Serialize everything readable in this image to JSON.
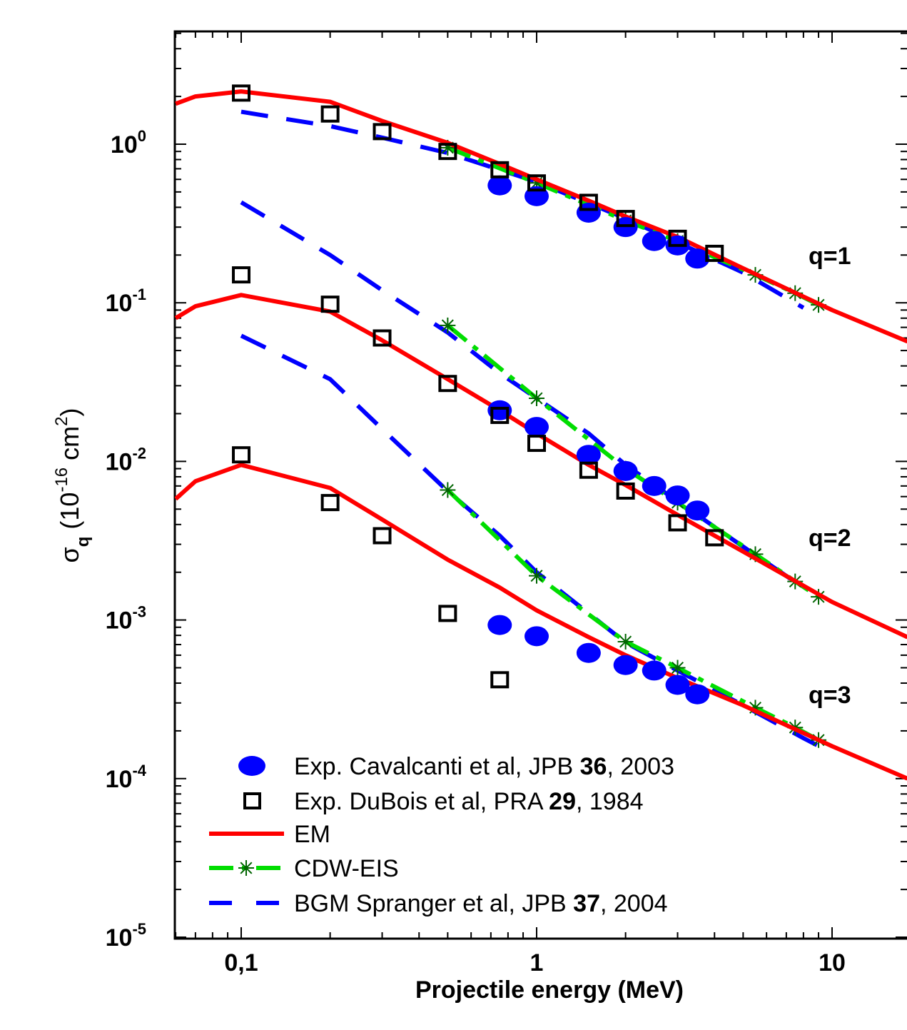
{
  "chart_data": {
    "type": "scatter",
    "x_scale": "log",
    "y_scale": "log",
    "xlim": [
      0.06,
      18
    ],
    "ylim": [
      1e-05,
      10
    ],
    "x_ticks": [
      {
        "value": 0.1,
        "label": "0,1"
      },
      {
        "value": 1,
        "label": "1"
      },
      {
        "value": 10,
        "label": "10"
      }
    ],
    "y_ticks": [
      {
        "value": 1,
        "base": "10",
        "exp": "0"
      },
      {
        "value": 0.1,
        "base": "10",
        "exp": "-1"
      },
      {
        "value": 0.01,
        "base": "10",
        "exp": "-2"
      },
      {
        "value": 0.001,
        "base": "10",
        "exp": "-3"
      },
      {
        "value": 0.0001,
        "base": "10",
        "exp": "-4"
      },
      {
        "value": 1e-05,
        "base": "10",
        "exp": "-5"
      }
    ],
    "xlabel": "Projectile energy (MeV)",
    "ylabel": {
      "sigma": "σ",
      "sub": "q",
      "open": " (10",
      "exp": "-16",
      "unit": " cm",
      "unit_exp": "2",
      "close": ")"
    },
    "legend_placement": "bottom-left",
    "annotations": [
      {
        "text": "q=1",
        "x": 12.5,
        "y": 0.15
      },
      {
        "text": "q=2",
        "x": 12.5,
        "y": 0.0026
      },
      {
        "text": "q=3",
        "x": 12.5,
        "y": 0.00027
      }
    ],
    "series": [
      {
        "key": "cav",
        "legend": {
          "pre": "Exp. Cavalcanti et al, JPB ",
          "bold": "36",
          "post": ", 2003"
        },
        "marker": "filled-ellipse",
        "color": "#0000ff",
        "groups": [
          {
            "q": 1,
            "points": [
              [
                0.75,
                0.55
              ],
              [
                1.0,
                0.47
              ],
              [
                1.5,
                0.37
              ],
              [
                2.0,
                0.3
              ],
              [
                2.5,
                0.245
              ],
              [
                3.0,
                0.23
              ],
              [
                3.5,
                0.19
              ]
            ]
          },
          {
            "q": 2,
            "points": [
              [
                0.75,
                0.021
              ],
              [
                1.0,
                0.0165
              ],
              [
                1.5,
                0.011
              ],
              [
                2.0,
                0.0087
              ],
              [
                2.5,
                0.007
              ],
              [
                3.0,
                0.0061
              ],
              [
                3.5,
                0.0049
              ]
            ]
          },
          {
            "q": 3,
            "points": [
              [
                0.75,
                0.00093
              ],
              [
                1.0,
                0.00079
              ],
              [
                1.5,
                0.00062
              ],
              [
                2.0,
                0.00052
              ],
              [
                2.5,
                0.00048
              ],
              [
                3.0,
                0.00039
              ],
              [
                3.5,
                0.00034
              ]
            ]
          }
        ]
      },
      {
        "key": "dubois",
        "legend": {
          "pre": "Exp. DuBois et al, PRA ",
          "bold": "29",
          "post": ", 1984"
        },
        "marker": "open-square",
        "color": "#000000",
        "groups": [
          {
            "q": 1,
            "points": [
              [
                0.1,
                2.1
              ],
              [
                0.2,
                1.55
              ],
              [
                0.3,
                1.2
              ],
              [
                0.5,
                0.9
              ],
              [
                0.75,
                0.69
              ],
              [
                1.0,
                0.57
              ],
              [
                1.5,
                0.43
              ],
              [
                2.0,
                0.34
              ],
              [
                3.0,
                0.255
              ],
              [
                4.0,
                0.205
              ]
            ]
          },
          {
            "q": 2,
            "points": [
              [
                0.1,
                0.15
              ],
              [
                0.2,
                0.098
              ],
              [
                0.3,
                0.06
              ],
              [
                0.5,
                0.031
              ],
              [
                0.75,
                0.0195
              ],
              [
                1.0,
                0.013
              ],
              [
                1.5,
                0.0088
              ],
              [
                2.0,
                0.0065
              ],
              [
                3.0,
                0.0041
              ],
              [
                4.0,
                0.0033
              ]
            ]
          },
          {
            "q": 3,
            "points": [
              [
                0.1,
                0.011
              ],
              [
                0.2,
                0.0055
              ],
              [
                0.3,
                0.0034
              ],
              [
                0.5,
                0.0011
              ],
              [
                0.75,
                0.00042
              ]
            ]
          }
        ]
      },
      {
        "key": "em",
        "legend": {
          "pre": " EM",
          "bold": "",
          "post": ""
        },
        "marker": "solid-line",
        "color": "#ff0000",
        "groups": [
          {
            "q": 1,
            "points": [
              [
                0.06,
                1.8
              ],
              [
                0.07,
                2.0
              ],
              [
                0.1,
                2.15
              ],
              [
                0.2,
                1.85
              ],
              [
                0.3,
                1.4
              ],
              [
                0.5,
                1.02
              ],
              [
                0.75,
                0.75
              ],
              [
                1.0,
                0.6
              ],
              [
                1.5,
                0.44
              ],
              [
                2.0,
                0.35
              ],
              [
                3.0,
                0.26
              ],
              [
                5.0,
                0.165
              ],
              [
                10.0,
                0.09
              ],
              [
                18.0,
                0.057
              ]
            ]
          },
          {
            "q": 2,
            "points": [
              [
                0.06,
                0.08
              ],
              [
                0.07,
                0.095
              ],
              [
                0.1,
                0.112
              ],
              [
                0.2,
                0.088
              ],
              [
                0.3,
                0.058
              ],
              [
                0.5,
                0.033
              ],
              [
                0.75,
                0.021
              ],
              [
                1.0,
                0.015
              ],
              [
                1.5,
                0.0095
              ],
              [
                2.0,
                0.0071
              ],
              [
                3.0,
                0.0046
              ],
              [
                5.0,
                0.0027
              ],
              [
                10.0,
                0.0013
              ],
              [
                18.0,
                0.00078
              ]
            ]
          },
          {
            "q": 3,
            "points": [
              [
                0.06,
                0.0058
              ],
              [
                0.07,
                0.0075
              ],
              [
                0.1,
                0.0095
              ],
              [
                0.2,
                0.0068
              ],
              [
                0.3,
                0.0043
              ],
              [
                0.5,
                0.0024
              ],
              [
                0.75,
                0.0016
              ],
              [
                1.0,
                0.00115
              ],
              [
                1.5,
                0.00078
              ],
              [
                2.0,
                0.0006
              ],
              [
                3.0,
                0.00043
              ],
              [
                5.0,
                0.00029
              ],
              [
                10.0,
                0.00016
              ],
              [
                18.0,
                0.0001
              ]
            ]
          }
        ]
      },
      {
        "key": "cdw",
        "legend": {
          "pre": "CDW-EIS",
          "bold": "",
          "post": ""
        },
        "marker": "dash-dot-line-with-asterisk",
        "color": "#00dd00",
        "marker_color": "#006400",
        "groups": [
          {
            "q": 1,
            "points": [
              [
                0.5,
                0.95
              ],
              [
                1.0,
                0.57
              ],
              [
                2.0,
                0.33
              ],
              [
                3.0,
                0.245
              ],
              [
                5.5,
                0.15
              ],
              [
                7.5,
                0.115
              ],
              [
                9.0,
                0.097
              ]
            ]
          },
          {
            "q": 2,
            "points": [
              [
                0.5,
                0.072
              ],
              [
                1.0,
                0.025
              ],
              [
                2.0,
                0.009
              ],
              [
                3.0,
                0.0055
              ],
              [
                5.5,
                0.0026
              ],
              [
                7.5,
                0.00175
              ],
              [
                9.0,
                0.0014
              ]
            ]
          },
          {
            "q": 3,
            "points": [
              [
                0.5,
                0.0066
              ],
              [
                1.0,
                0.0019
              ],
              [
                2.0,
                0.00073
              ],
              [
                3.0,
                0.0005
              ],
              [
                5.5,
                0.00028
              ],
              [
                7.5,
                0.00021
              ],
              [
                9.0,
                0.000175
              ]
            ]
          }
        ]
      },
      {
        "key": "bgm",
        "legend": {
          "pre": "BGM Spranger et al, JPB ",
          "bold": "37",
          "post": ", 2004"
        },
        "marker": "dashed-line",
        "color": "#0000ff",
        "groups": [
          {
            "q": 1,
            "points": [
              [
                0.1,
                1.6
              ],
              [
                0.2,
                1.3
              ],
              [
                0.3,
                1.1
              ],
              [
                0.5,
                0.88
              ],
              [
                1.0,
                0.58
              ],
              [
                2.0,
                0.34
              ],
              [
                3.0,
                0.24
              ],
              [
                5.0,
                0.155
              ],
              [
                8.0,
                0.093
              ]
            ]
          },
          {
            "q": 2,
            "points": [
              [
                0.1,
                0.43
              ],
              [
                0.2,
                0.2
              ],
              [
                0.3,
                0.12
              ],
              [
                0.5,
                0.065
              ],
              [
                0.75,
                0.036
              ],
              [
                1.0,
                0.025
              ],
              [
                1.5,
                0.015
              ],
              [
                2.0,
                0.0095
              ],
              [
                3.0,
                0.0056
              ],
              [
                5.0,
                0.0029
              ],
              [
                8.0,
                0.0016
              ]
            ]
          },
          {
            "q": 3,
            "points": [
              [
                0.1,
                0.062
              ],
              [
                0.2,
                0.033
              ],
              [
                0.3,
                0.016
              ],
              [
                0.5,
                0.0065
              ],
              [
                0.75,
                0.0034
              ],
              [
                1.0,
                0.002
              ],
              [
                1.5,
                0.0011
              ],
              [
                2.0,
                0.00072
              ],
              [
                3.0,
                0.00048
              ],
              [
                5.0,
                0.00029
              ],
              [
                8.0,
                0.00018
              ],
              [
                10.0,
                0.000145
              ]
            ]
          }
        ]
      }
    ]
  }
}
